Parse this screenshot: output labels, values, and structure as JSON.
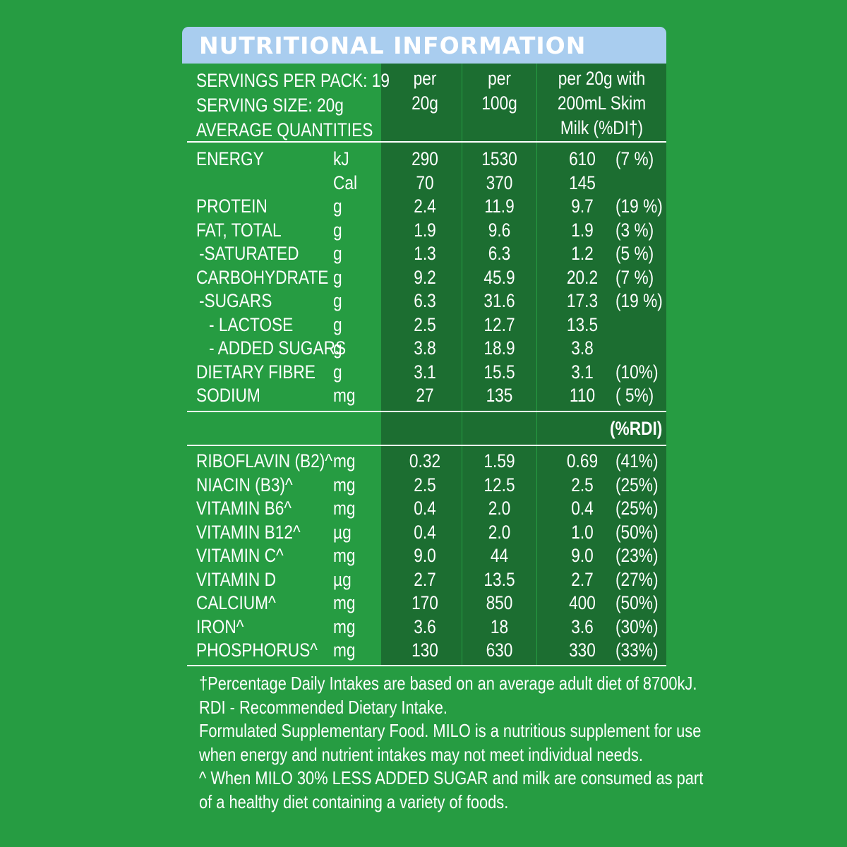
{
  "title": "NUTRITIONAL INFORMATION",
  "header": {
    "servings_per_pack": "SERVINGS PER PACK: 19",
    "serving_size": "SERVING SIZE: 20g",
    "average_quantities": "AVERAGE QUANTITIES",
    "col1": [
      "per",
      "20g"
    ],
    "col2": [
      "per",
      "100g"
    ],
    "col3": [
      "per 20g with",
      "200mL Skim",
      "Milk (%DI†)"
    ]
  },
  "nutrients": [
    {
      "name": "ENERGY",
      "unit": "kJ",
      "per_serve": "290",
      "per_100g": "1530",
      "with_milk": "610",
      "pct": "(7 %)"
    },
    {
      "name": "",
      "unit": "Cal",
      "per_serve": "70",
      "per_100g": "370",
      "with_milk": "145",
      "pct": ""
    },
    {
      "name": "PROTEIN",
      "unit": "g",
      "per_serve": "2.4",
      "per_100g": "11.9",
      "with_milk": "9.7",
      "pct": "(19 %)"
    },
    {
      "name": "FAT, TOTAL",
      "unit": "g",
      "per_serve": "1.9",
      "per_100g": "9.6",
      "with_milk": "1.9",
      "pct": "(3 %)"
    },
    {
      "name": "-SATURATED",
      "unit": "g",
      "per_serve": "1.3",
      "per_100g": "6.3",
      "with_milk": "1.2",
      "pct": "(5 %)"
    },
    {
      "name": "CARBOHYDRATE",
      "unit": "g",
      "per_serve": "9.2",
      "per_100g": "45.9",
      "with_milk": "20.2",
      "pct": "(7 %)"
    },
    {
      "name": "-SUGARS",
      "unit": "g",
      "per_serve": "6.3",
      "per_100g": "31.6",
      "with_milk": "17.3",
      "pct": "(19 %)"
    },
    {
      "name": "- LACTOSE",
      "unit": "g",
      "per_serve": "2.5",
      "per_100g": "12.7",
      "with_milk": "13.5",
      "pct": ""
    },
    {
      "name": "- ADDED SUGARS",
      "unit": "g",
      "per_serve": "3.8",
      "per_100g": "18.9",
      "with_milk": "3.8",
      "pct": ""
    },
    {
      "name": "DIETARY FIBRE",
      "unit": "g",
      "per_serve": "3.1",
      "per_100g": "15.5",
      "with_milk": "3.1",
      "pct": "(10%)"
    },
    {
      "name": "SODIUM",
      "unit": "mg",
      "per_serve": "27",
      "per_100g": "135",
      "with_milk": "110",
      "pct": "( 5%)"
    }
  ],
  "rdi_label": "(%RDI)",
  "vitamins": [
    {
      "name": "RIBOFLAVIN (B2)^",
      "unit": "mg",
      "per_serve": "0.32",
      "per_100g": "1.59",
      "with_milk": "0.69",
      "pct": "(41%)"
    },
    {
      "name": "NIACIN (B3)^",
      "unit": "mg",
      "per_serve": "2.5",
      "per_100g": "12.5",
      "with_milk": "2.5",
      "pct": "(25%)"
    },
    {
      "name": "VITAMIN B6^",
      "unit": "mg",
      "per_serve": "0.4",
      "per_100g": "2.0",
      "with_milk": "0.4",
      "pct": "(25%)"
    },
    {
      "name": "VITAMIN B12^",
      "unit": "µg",
      "per_serve": "0.4",
      "per_100g": "2.0",
      "with_milk": "1.0",
      "pct": "(50%)"
    },
    {
      "name": "VITAMIN C^",
      "unit": "mg",
      "per_serve": "9.0",
      "per_100g": "44",
      "with_milk": "9.0",
      "pct": "(23%)"
    },
    {
      "name": "VITAMIN D",
      "unit": "µg",
      "per_serve": "2.7",
      "per_100g": "13.5",
      "with_milk": "2.7",
      "pct": "(27%)"
    },
    {
      "name": "CALCIUM^",
      "unit": "mg",
      "per_serve": "170",
      "per_100g": "850",
      "with_milk": "400",
      "pct": "(50%)"
    },
    {
      "name": "IRON^",
      "unit": "mg",
      "per_serve": "3.6",
      "per_100g": "18",
      "with_milk": "3.6",
      "pct": "(30%)"
    },
    {
      "name": "PHOSPHORUS^",
      "unit": "mg",
      "per_serve": "130",
      "per_100g": "630",
      "with_milk": "330",
      "pct": "(33%)"
    }
  ],
  "footnotes": [
    "†Percentage Daily Intakes are based on an average adult diet of 8700kJ.",
    "RDI - Recommended Dietary Intake.",
    "Formulated Supplementary Food. MILO is a nutritious supplement for use",
    "when energy and nutrient intakes may not meet individual needs.",
    "^ When MILO 30% LESS ADDED SUGAR and milk are consumed as part",
    "of a healthy diet containing a variety of foods."
  ],
  "colors": {
    "background": "#269c42",
    "column_shade": "#1c6e31",
    "title_bar": "#a9cdef",
    "text": "#ffffff"
  }
}
